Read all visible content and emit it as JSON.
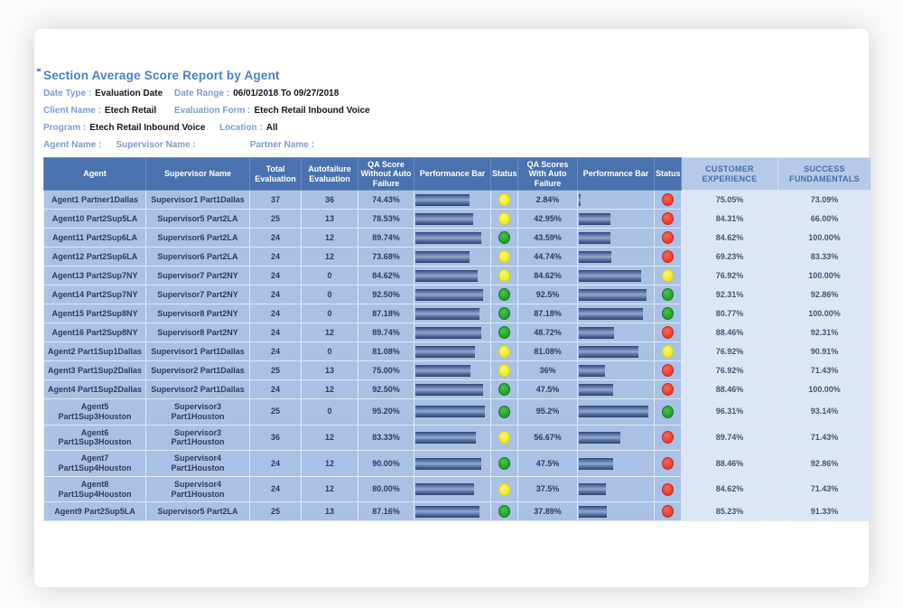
{
  "page": {
    "title": "Section Average Score Report by Agent"
  },
  "filters": {
    "date_type_label": "Date Type :",
    "date_type": "Evaluation Date",
    "date_range_label": "Date Range :",
    "date_range": "06/01/2018  To  09/27/2018",
    "client_name_label": "Client Name :",
    "client_name": "Etech Retail",
    "evaluation_form_label": "Evaluation Form :",
    "evaluation_form": "Etech Retail Inbound Voice",
    "program_label": "Program :",
    "program": "Etech Retail Inbound Voice",
    "location_label": "Location :",
    "location": "All",
    "agent_name_label": "Agent Name :",
    "agent_name": "",
    "supervisor_name_label": "Supervisor Name :",
    "supervisor_name": "",
    "partner_name_label": "Partner Name :",
    "partner_name": ""
  },
  "colors": {
    "header_bg": "#4a72ae",
    "header_light_bg": "#b5c9e8",
    "row_bg": "#a9c1e4",
    "row_light_bg": "#dde6f5",
    "bar_dark": "#2f4676",
    "title_blue": "#4a80c4",
    "label_blue": "#7c9bd4",
    "status_green": "#1da226",
    "status_yellow": "#f3ea22",
    "status_red": "#ee392a"
  },
  "table": {
    "columns": [
      {
        "label": "Agent",
        "theme": "dark"
      },
      {
        "label": "Supervisor Name",
        "theme": "dark"
      },
      {
        "label": "Total Evaluation",
        "theme": "dark"
      },
      {
        "label": "Autofailure Evaluation",
        "theme": "dark"
      },
      {
        "label": "QA Score Without Auto Failure",
        "theme": "dark"
      },
      {
        "label": "Performance Bar",
        "theme": "dark"
      },
      {
        "label": "Status",
        "theme": "dark"
      },
      {
        "label": "QA Scores With Auto Failure",
        "theme": "dark"
      },
      {
        "label": "Performance Bar",
        "theme": "dark"
      },
      {
        "label": "Status",
        "theme": "dark"
      },
      {
        "label": "CUSTOMER EXPERIENCE",
        "theme": "light"
      },
      {
        "label": "SUCCESS FUNDAMENTALS",
        "theme": "light"
      }
    ],
    "rows": [
      {
        "agent": "Agent1 Partner1Dallas",
        "supervisor": "Supervisor1 Part1Dallas",
        "total_eval": "37",
        "autofail_eval": "36",
        "qa_without": "74.43%",
        "qa_without_pct": 74.43,
        "status_without": "yellow",
        "qa_with": "2.84%",
        "qa_with_pct": 2.84,
        "status_with": "red",
        "customer_experience": "75.05%",
        "success_fundamentals": "73.09%"
      },
      {
        "agent": "Agent10 Part2Sup5LA",
        "supervisor": "Supervisor5 Part2LA",
        "total_eval": "25",
        "autofail_eval": "13",
        "qa_without": "78.53%",
        "qa_without_pct": 78.53,
        "status_without": "yellow",
        "qa_with": "42.95%",
        "qa_with_pct": 42.95,
        "status_with": "red",
        "customer_experience": "84.31%",
        "success_fundamentals": "66.00%"
      },
      {
        "agent": "Agent11 Part2Sup6LA",
        "supervisor": "Supervisor6 Part2LA",
        "total_eval": "24",
        "autofail_eval": "12",
        "qa_without": "89.74%",
        "qa_without_pct": 89.74,
        "status_without": "green",
        "qa_with": "43.59%",
        "qa_with_pct": 43.59,
        "status_with": "red",
        "customer_experience": "84.62%",
        "success_fundamentals": "100.00%"
      },
      {
        "agent": "Agent12 Part2Sup6LA",
        "supervisor": "Supervisor6 Part2LA",
        "total_eval": "24",
        "autofail_eval": "12",
        "qa_without": "73.68%",
        "qa_without_pct": 73.68,
        "status_without": "yellow",
        "qa_with": "44.74%",
        "qa_with_pct": 44.74,
        "status_with": "red",
        "customer_experience": "69.23%",
        "success_fundamentals": "83.33%"
      },
      {
        "agent": "Agent13 Part2Sup7NY",
        "supervisor": "Supervisor7 Part2NY",
        "total_eval": "24",
        "autofail_eval": "0",
        "qa_without": "84.62%",
        "qa_without_pct": 84.62,
        "status_without": "yellow",
        "qa_with": "84.62%",
        "qa_with_pct": 84.62,
        "status_with": "yellow",
        "customer_experience": "76.92%",
        "success_fundamentals": "100.00%"
      },
      {
        "agent": "Agent14 Part2Sup7NY",
        "supervisor": "Supervisor7 Part2NY",
        "total_eval": "24",
        "autofail_eval": "0",
        "qa_without": "92.50%",
        "qa_without_pct": 92.5,
        "status_without": "green",
        "qa_with": "92.5%",
        "qa_with_pct": 92.5,
        "status_with": "green",
        "customer_experience": "92.31%",
        "success_fundamentals": "92.86%"
      },
      {
        "agent": "Agent15 Part2Sup8NY",
        "supervisor": "Supervisor8 Part2NY",
        "total_eval": "24",
        "autofail_eval": "0",
        "qa_without": "87.18%",
        "qa_without_pct": 87.18,
        "status_without": "green",
        "qa_with": "87.18%",
        "qa_with_pct": 87.18,
        "status_with": "green",
        "customer_experience": "80.77%",
        "success_fundamentals": "100.00%"
      },
      {
        "agent": "Agent16 Part2Sup8NY",
        "supervisor": "Supervisor8 Part2NY",
        "total_eval": "24",
        "autofail_eval": "12",
        "qa_without": "89.74%",
        "qa_without_pct": 89.74,
        "status_without": "green",
        "qa_with": "48.72%",
        "qa_with_pct": 48.72,
        "status_with": "red",
        "customer_experience": "88.46%",
        "success_fundamentals": "92.31%"
      },
      {
        "agent": "Agent2 Part1Sup1Dallas",
        "supervisor": "Supervisor1 Part1Dallas",
        "total_eval": "24",
        "autofail_eval": "0",
        "qa_without": "81.08%",
        "qa_without_pct": 81.08,
        "status_without": "yellow",
        "qa_with": "81.08%",
        "qa_with_pct": 81.08,
        "status_with": "yellow",
        "customer_experience": "76.92%",
        "success_fundamentals": "90.91%"
      },
      {
        "agent": "Agent3 Part1Sup2Dallas",
        "supervisor": "Supervisor2 Part1Dallas",
        "total_eval": "25",
        "autofail_eval": "13",
        "qa_without": "75.00%",
        "qa_without_pct": 75.0,
        "status_without": "yellow",
        "qa_with": "36%",
        "qa_with_pct": 36.0,
        "status_with": "red",
        "customer_experience": "76.92%",
        "success_fundamentals": "71.43%"
      },
      {
        "agent": "Agent4 Part1Sup2Dallas",
        "supervisor": "Supervisor2 Part1Dallas",
        "total_eval": "24",
        "autofail_eval": "12",
        "qa_without": "92.50%",
        "qa_without_pct": 92.5,
        "status_without": "green",
        "qa_with": "47.5%",
        "qa_with_pct": 47.5,
        "status_with": "red",
        "customer_experience": "88.46%",
        "success_fundamentals": "100.00%"
      },
      {
        "agent": "Agent5 Part1Sup3Houston",
        "supervisor": "Supervisor3 Part1Houston",
        "total_eval": "25",
        "autofail_eval": "0",
        "qa_without": "95.20%",
        "qa_without_pct": 95.2,
        "status_without": "green",
        "qa_with": "95.2%",
        "qa_with_pct": 95.2,
        "status_with": "green",
        "customer_experience": "96.31%",
        "success_fundamentals": "93.14%"
      },
      {
        "agent": "Agent6 Part1Sup3Houston",
        "supervisor": "Supervisor3 Part1Houston",
        "total_eval": "36",
        "autofail_eval": "12",
        "qa_without": "83.33%",
        "qa_without_pct": 83.33,
        "status_without": "yellow",
        "qa_with": "56.67%",
        "qa_with_pct": 56.67,
        "status_with": "red",
        "customer_experience": "89.74%",
        "success_fundamentals": "71.43%"
      },
      {
        "agent": "Agent7 Part1Sup4Houston",
        "supervisor": "Supervisor4 Part1Houston",
        "total_eval": "24",
        "autofail_eval": "12",
        "qa_without": "90.00%",
        "qa_without_pct": 90.0,
        "status_without": "green",
        "qa_with": "47.5%",
        "qa_with_pct": 47.5,
        "status_with": "red",
        "customer_experience": "88.46%",
        "success_fundamentals": "92.86%"
      },
      {
        "agent": "Agent8 Part1Sup4Houston",
        "supervisor": "Supervisor4 Part1Houston",
        "total_eval": "24",
        "autofail_eval": "12",
        "qa_without": "80.00%",
        "qa_without_pct": 80.0,
        "status_without": "yellow",
        "qa_with": "37.5%",
        "qa_with_pct": 37.5,
        "status_with": "red",
        "customer_experience": "84.62%",
        "success_fundamentals": "71.43%"
      },
      {
        "agent": "Agent9 Part2Sup5LA",
        "supervisor": "Supervisor5 Part2LA",
        "total_eval": "25",
        "autofail_eval": "13",
        "qa_without": "87.16%",
        "qa_without_pct": 87.16,
        "status_without": "green",
        "qa_with": "37.89%",
        "qa_with_pct": 37.89,
        "status_with": "red",
        "customer_experience": "85.23%",
        "success_fundamentals": "91.33%"
      }
    ]
  }
}
